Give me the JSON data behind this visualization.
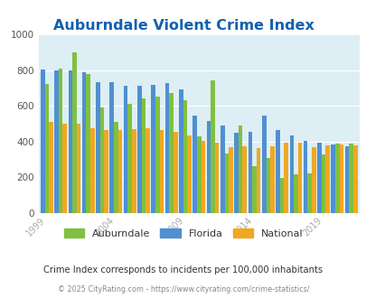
{
  "years": [
    1999,
    2000,
    2001,
    2002,
    2003,
    2004,
    2005,
    2006,
    2007,
    2008,
    2009,
    2010,
    2011,
    2012,
    2013,
    2014,
    2015,
    2016,
    2017,
    2018,
    2019,
    2020,
    2021
  ],
  "auburndale": [
    720,
    810,
    900,
    780,
    590,
    510,
    610,
    640,
    650,
    670,
    630,
    430,
    740,
    335,
    490,
    260,
    310,
    195,
    215,
    220,
    330,
    390,
    390
  ],
  "florida": [
    805,
    800,
    800,
    790,
    730,
    730,
    710,
    710,
    715,
    725,
    690,
    545,
    515,
    490,
    450,
    455,
    545,
    465,
    435,
    405,
    395,
    385,
    375
  ],
  "national": [
    510,
    500,
    500,
    475,
    465,
    465,
    470,
    475,
    465,
    455,
    435,
    405,
    395,
    370,
    375,
    365,
    375,
    395,
    395,
    370,
    380,
    385,
    380
  ],
  "title": "Auburndale Violent Crime Index",
  "title_color": "#1060b0",
  "bar_colors_order": [
    "#5090d0",
    "#80c040",
    "#f0a820"
  ],
  "legend_labels": [
    "Auburndale",
    "Florida",
    "National"
  ],
  "legend_colors": [
    "#80c040",
    "#5090d0",
    "#f0a820"
  ],
  "bg_color": "#ddeef5",
  "ylim": [
    0,
    1000
  ],
  "yticks": [
    0,
    200,
    400,
    600,
    800,
    1000
  ],
  "xtick_labels": [
    "1999",
    "2004",
    "2009",
    "2014",
    "2019"
  ],
  "xtick_positions": [
    1999,
    2004,
    2009,
    2014,
    2019
  ],
  "subtitle": "Crime Index corresponds to incidents per 100,000 inhabitants",
  "footer": "© 2025 CityRating.com - https://www.cityrating.com/crime-statistics/",
  "subtitle_color": "#333333",
  "footer_color": "#888888",
  "xtick_color": "#aaaaaa"
}
